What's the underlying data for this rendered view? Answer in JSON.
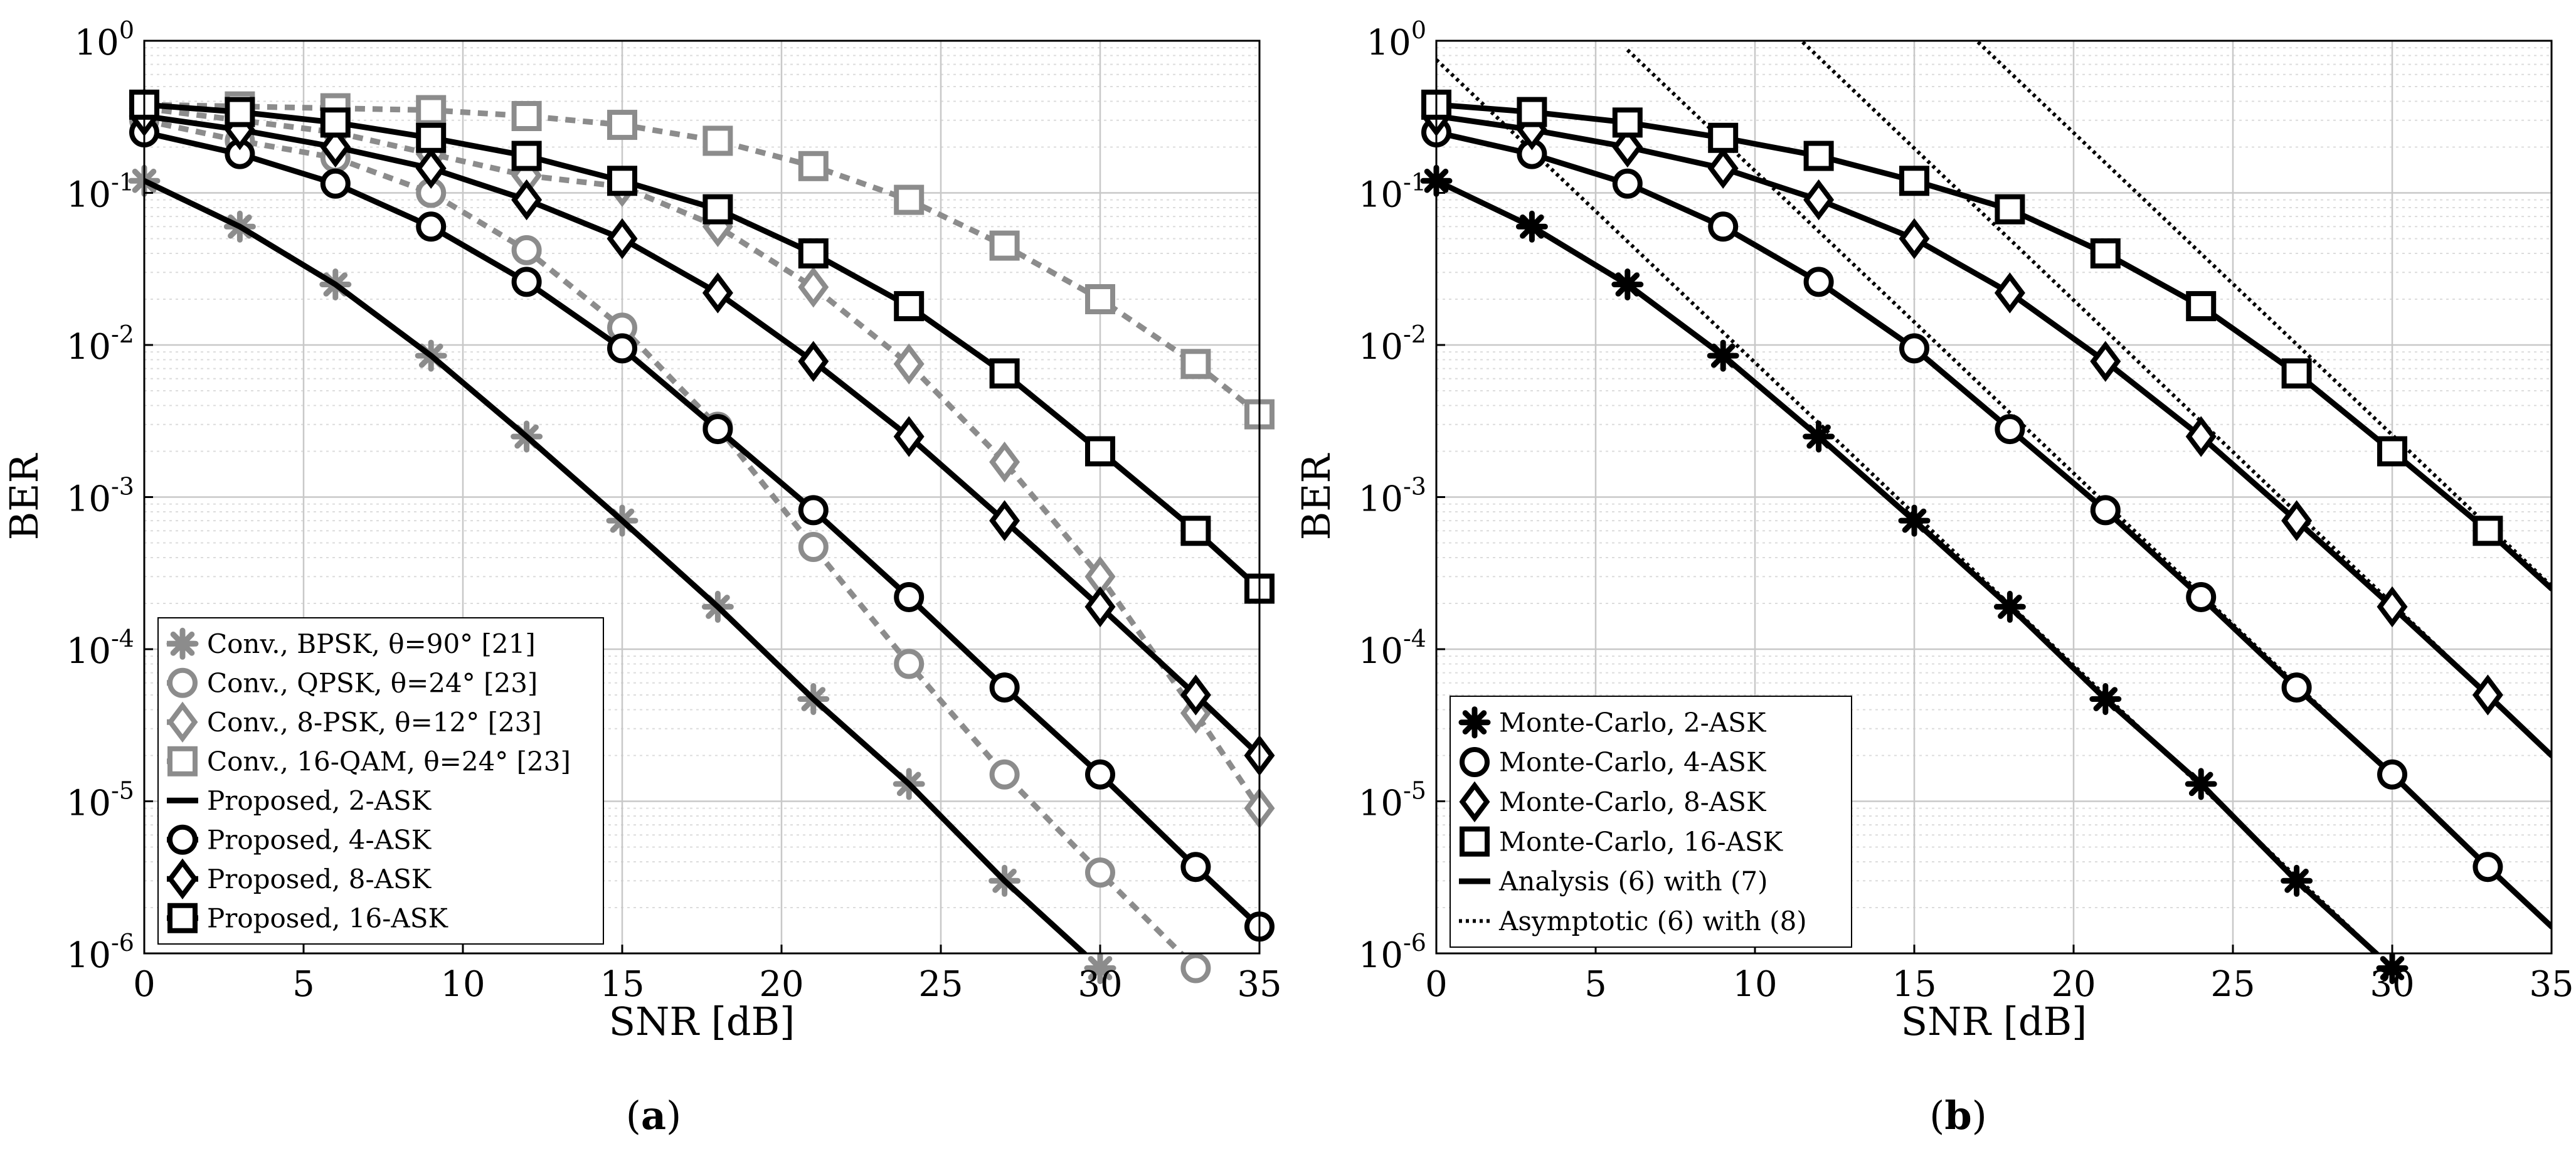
{
  "chart_data": [
    {
      "panel_label": "a",
      "type": "line",
      "xlabel": "SNR [dB]",
      "ylabel": "BER",
      "xlim": [
        0,
        35
      ],
      "ylim": [
        1e-06,
        1
      ],
      "yscale": "log",
      "grid": true,
      "legend_position": "bottom-left",
      "xticks": [
        0,
        5,
        10,
        15,
        20,
        25,
        30,
        35
      ],
      "xtick_labels": [
        "0",
        "5",
        "10",
        "15",
        "20",
        "25",
        "30",
        "35"
      ],
      "ytick_labels": [
        {
          "base": "10",
          "exp": "0"
        },
        {
          "base": "10",
          "exp": "-1"
        },
        {
          "base": "10",
          "exp": "-2"
        },
        {
          "base": "10",
          "exp": "-3"
        },
        {
          "base": "10",
          "exp": "-4"
        },
        {
          "base": "10",
          "exp": "-5"
        },
        {
          "base": "10",
          "exp": "-6"
        }
      ],
      "series": [
        {
          "name": "Conv., BPSK, θ=90° [21]",
          "label": "Conv., BPSK, θ=90° [21]",
          "color": "#8c8c8c",
          "line": "dashed",
          "marker": "asterisk",
          "x": [
            0,
            3,
            6,
            9,
            12,
            15,
            18,
            21,
            24,
            27,
            30
          ],
          "values": [
            0.12,
            0.06,
            0.025,
            0.0085,
            0.0025,
            0.0007,
            0.00019,
            4.7e-05,
            1.3e-05,
            3e-06,
            8e-07
          ]
        },
        {
          "name": "Conv., QPSK, θ=24° [23]",
          "label": "Conv., QPSK, θ=24° [23]",
          "color": "#8c8c8c",
          "line": "dashed",
          "marker": "circle",
          "x": [
            0,
            3,
            6,
            9,
            12,
            15,
            18,
            21,
            24,
            27,
            30,
            33
          ],
          "values": [
            0.3,
            0.22,
            0.17,
            0.1,
            0.042,
            0.013,
            0.0029,
            0.00047,
            8e-05,
            1.5e-05,
            3.4e-06,
            8e-07
          ]
        },
        {
          "name": "Conv., 8-PSK, θ=12° [23]",
          "label": "Conv., 8-PSK, θ=12° [23]",
          "color": "#8c8c8c",
          "line": "dashed",
          "marker": "diamond",
          "x": [
            0,
            3,
            6,
            9,
            12,
            15,
            18,
            21,
            24,
            27,
            30,
            33,
            35
          ],
          "values": [
            0.36,
            0.3,
            0.25,
            0.18,
            0.13,
            0.11,
            0.06,
            0.024,
            0.0075,
            0.0017,
            0.0003,
            3.8e-05,
            9e-06
          ]
        },
        {
          "name": "Conv., 16-QAM, θ=24° [23]",
          "label": "Conv., 16-QAM, θ=24° [23]",
          "color": "#8c8c8c",
          "line": "dashed",
          "marker": "square",
          "x": [
            0,
            3,
            6,
            9,
            12,
            15,
            18,
            21,
            24,
            27,
            30,
            33,
            35
          ],
          "values": [
            0.38,
            0.37,
            0.36,
            0.35,
            0.32,
            0.28,
            0.22,
            0.15,
            0.09,
            0.045,
            0.02,
            0.0075,
            0.0035
          ]
        },
        {
          "name": "Proposed, 2-ASK",
          "label": "Proposed, 2-ASK",
          "color": "#000000",
          "line": "solid",
          "marker": "none",
          "x": [
            0,
            3,
            6,
            9,
            12,
            15,
            18,
            21,
            24,
            27,
            30
          ],
          "values": [
            0.12,
            0.06,
            0.025,
            0.0085,
            0.0025,
            0.0007,
            0.00019,
            4.7e-05,
            1.3e-05,
            3e-06,
            8e-07
          ]
        },
        {
          "name": "Proposed, 4-ASK",
          "label": "Proposed, 4-ASK",
          "color": "#000000",
          "line": "solid",
          "marker": "circle",
          "x": [
            0,
            3,
            6,
            9,
            12,
            15,
            18,
            21,
            24,
            27,
            30,
            33,
            35
          ],
          "values": [
            0.25,
            0.18,
            0.115,
            0.06,
            0.026,
            0.0095,
            0.0028,
            0.00082,
            0.00022,
            5.6e-05,
            1.5e-05,
            3.7e-06,
            1.5e-06
          ]
        },
        {
          "name": "Proposed, 8-ASK",
          "label": "Proposed, 8-ASK",
          "color": "#000000",
          "line": "solid",
          "marker": "diamond",
          "x": [
            0,
            3,
            6,
            9,
            12,
            15,
            18,
            21,
            24,
            27,
            30,
            33,
            35
          ],
          "values": [
            0.32,
            0.26,
            0.2,
            0.145,
            0.09,
            0.05,
            0.022,
            0.0078,
            0.0025,
            0.0007,
            0.00019,
            5e-05,
            2e-05
          ]
        },
        {
          "name": "Proposed, 16-ASK",
          "label": "Proposed, 16-ASK",
          "color": "#000000",
          "line": "solid",
          "marker": "square",
          "x": [
            0,
            3,
            6,
            9,
            12,
            15,
            18,
            21,
            24,
            27,
            30,
            33,
            35
          ],
          "values": [
            0.38,
            0.34,
            0.29,
            0.23,
            0.175,
            0.12,
            0.078,
            0.04,
            0.018,
            0.0065,
            0.002,
            0.0006,
            0.00025
          ]
        }
      ]
    },
    {
      "panel_label": "b",
      "type": "line",
      "xlabel": "SNR [dB]",
      "ylabel": "BER",
      "xlim": [
        0,
        35
      ],
      "ylim": [
        1e-06,
        1
      ],
      "yscale": "log",
      "grid": true,
      "legend_position": "bottom-left",
      "xticks": [
        0,
        5,
        10,
        15,
        20,
        25,
        30,
        35
      ],
      "xtick_labels": [
        "0",
        "5",
        "10",
        "15",
        "20",
        "25",
        "30",
        "35"
      ],
      "ytick_labels": [
        {
          "base": "10",
          "exp": "0"
        },
        {
          "base": "10",
          "exp": "-1"
        },
        {
          "base": "10",
          "exp": "-2"
        },
        {
          "base": "10",
          "exp": "-3"
        },
        {
          "base": "10",
          "exp": "-4"
        },
        {
          "base": "10",
          "exp": "-5"
        },
        {
          "base": "10",
          "exp": "-6"
        }
      ],
      "series": [
        {
          "name": "Analysis 2-ASK",
          "legend": false,
          "color": "#000000",
          "line": "solid",
          "marker": "none",
          "x": [
            0,
            3,
            6,
            9,
            12,
            15,
            18,
            21,
            24,
            27,
            30
          ],
          "values": [
            0.12,
            0.06,
            0.025,
            0.0085,
            0.0025,
            0.0007,
            0.00019,
            4.7e-05,
            1.3e-05,
            3e-06,
            8e-07
          ]
        },
        {
          "name": "Analysis 4-ASK",
          "legend": false,
          "color": "#000000",
          "line": "solid",
          "marker": "none",
          "x": [
            0,
            3,
            6,
            9,
            12,
            15,
            18,
            21,
            24,
            27,
            30,
            33,
            35
          ],
          "values": [
            0.25,
            0.18,
            0.115,
            0.06,
            0.026,
            0.0095,
            0.0028,
            0.00082,
            0.00022,
            5.6e-05,
            1.5e-05,
            3.7e-06,
            1.5e-06
          ]
        },
        {
          "name": "Analysis 8-ASK",
          "legend": false,
          "color": "#000000",
          "line": "solid",
          "marker": "none",
          "x": [
            0,
            3,
            6,
            9,
            12,
            15,
            18,
            21,
            24,
            27,
            30,
            33,
            35
          ],
          "values": [
            0.32,
            0.26,
            0.2,
            0.145,
            0.09,
            0.05,
            0.022,
            0.0078,
            0.0025,
            0.0007,
            0.00019,
            5e-05,
            2e-05
          ]
        },
        {
          "name": "Analysis 16-ASK",
          "legend": false,
          "color": "#000000",
          "line": "solid",
          "marker": "none",
          "x": [
            0,
            3,
            6,
            9,
            12,
            15,
            18,
            21,
            24,
            27,
            30,
            33,
            35
          ],
          "values": [
            0.38,
            0.34,
            0.29,
            0.23,
            0.175,
            0.12,
            0.078,
            0.04,
            0.018,
            0.0065,
            0.002,
            0.0006,
            0.00025
          ]
        },
        {
          "name": "Asymptotic 2-ASK",
          "legend": false,
          "color": "#000000",
          "line": "dotted",
          "marker": "none",
          "x": [
            0,
            30
          ],
          "values": [
            0.75,
            8e-07
          ]
        },
        {
          "name": "Asymptotic 4-ASK",
          "legend": false,
          "color": "#000000",
          "line": "dotted",
          "marker": "none",
          "x": [
            6,
            35
          ],
          "values": [
            0.87,
            1.5e-06
          ]
        },
        {
          "name": "Asymptotic 8-ASK",
          "legend": false,
          "color": "#000000",
          "line": "dotted",
          "marker": "none",
          "x": [
            11.5,
            35
          ],
          "values": [
            0.98,
            2e-05
          ]
        },
        {
          "name": "Asymptotic 16-ASK",
          "legend": false,
          "color": "#000000",
          "line": "dotted",
          "marker": "none",
          "x": [
            17,
            35
          ],
          "values": [
            0.98,
            0.00026
          ]
        },
        {
          "name": "Monte-Carlo, 2-ASK",
          "label": "Monte-Carlo, 2-ASK",
          "color": "#000000",
          "line": "none",
          "marker": "asterisk",
          "x": [
            0,
            3,
            6,
            9,
            12,
            15,
            18,
            21,
            24,
            27,
            30
          ],
          "values": [
            0.12,
            0.06,
            0.025,
            0.0085,
            0.0025,
            0.0007,
            0.00019,
            4.7e-05,
            1.3e-05,
            3e-06,
            8e-07
          ]
        },
        {
          "name": "Monte-Carlo, 4-ASK",
          "label": "Monte-Carlo, 4-ASK",
          "color": "#000000",
          "line": "none",
          "marker": "circle",
          "x": [
            0,
            3,
            6,
            9,
            12,
            15,
            18,
            21,
            24,
            27,
            30,
            33
          ],
          "values": [
            0.25,
            0.18,
            0.115,
            0.06,
            0.026,
            0.0095,
            0.0028,
            0.00082,
            0.00022,
            5.6e-05,
            1.5e-05,
            3.7e-06
          ]
        },
        {
          "name": "Monte-Carlo, 8-ASK",
          "label": "Monte-Carlo, 8-ASK",
          "color": "#000000",
          "line": "none",
          "marker": "diamond",
          "x": [
            0,
            3,
            6,
            9,
            12,
            15,
            18,
            21,
            24,
            27,
            30,
            33
          ],
          "values": [
            0.32,
            0.26,
            0.2,
            0.145,
            0.09,
            0.05,
            0.022,
            0.0078,
            0.0025,
            0.0007,
            0.00019,
            5e-05
          ]
        },
        {
          "name": "Monte-Carlo, 16-ASK",
          "label": "Monte-Carlo, 16-ASK",
          "color": "#000000",
          "line": "none",
          "marker": "square",
          "x": [
            0,
            3,
            6,
            9,
            12,
            15,
            18,
            21,
            24,
            27,
            30,
            33
          ],
          "values": [
            0.38,
            0.34,
            0.29,
            0.23,
            0.175,
            0.12,
            0.078,
            0.04,
            0.018,
            0.0065,
            0.002,
            0.0006
          ]
        },
        {
          "name": "Analysis (6) with (7)",
          "label": "Analysis (6) with (7)",
          "legend_only": true,
          "color": "#000000",
          "line": "solid",
          "marker": "none",
          "x": [],
          "values": []
        },
        {
          "name": "Asymptotic (6) with (8)",
          "label": "Asymptotic (6) with (8)",
          "legend_only": true,
          "color": "#000000",
          "line": "dotted",
          "marker": "none",
          "x": [],
          "values": []
        }
      ]
    }
  ]
}
